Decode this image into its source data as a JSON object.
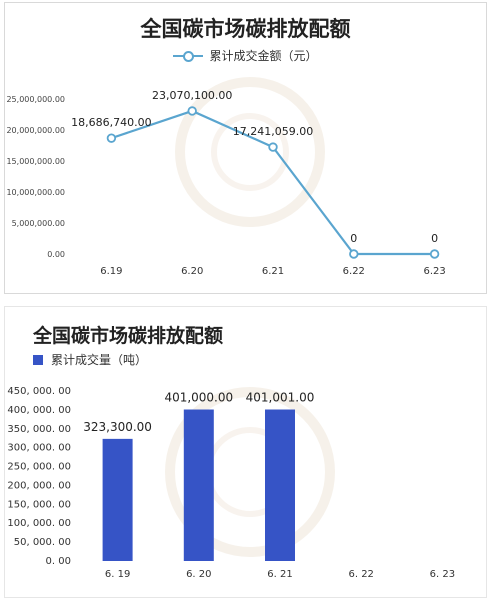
{
  "chart_data": [
    {
      "type": "line",
      "title": "全国碳市场碳排放配额",
      "categories": [
        "6.19",
        "6.20",
        "6.21",
        "6.22",
        "6.23"
      ],
      "series": [
        {
          "name": "累计成交金额（元）",
          "values": [
            18686740.0,
            23070100.0,
            17241059.0,
            0,
            0
          ]
        }
      ],
      "data_labels": [
        "18,686,740.00",
        "23,070,100.00",
        "17,241,059.00",
        "0",
        "0"
      ],
      "yticks": [
        "0.00",
        "5,000,000.00",
        "10,000,000.00",
        "15,000,000.00",
        "20,000,000.00",
        "25,000,000.00"
      ],
      "ylim": [
        0,
        25000000
      ],
      "grid": false,
      "legend": "top",
      "color": "#5aa5cf"
    },
    {
      "type": "bar",
      "title": "全国碳市场碳排放配额",
      "categories": [
        "6. 19",
        "6. 20",
        "6. 21",
        "6. 22",
        "6. 23"
      ],
      "series": [
        {
          "name": "累计成交量（吨）",
          "values": [
            323300.0,
            401000.0,
            401001.0,
            null,
            null
          ]
        }
      ],
      "data_labels": [
        "323,300.00",
        "401,000.00",
        "401,001.00",
        "",
        ""
      ],
      "yticks": [
        "0. 00",
        "50, 000. 00",
        "100, 000. 00",
        "150, 000. 00",
        "200, 000. 00",
        "250, 000. 00",
        "300, 000. 00",
        "350, 000. 00",
        "400, 000. 00",
        "450, 000. 00"
      ],
      "ylim": [
        0,
        450000
      ],
      "grid": false,
      "legend": "top-left",
      "color": "#3654c6"
    }
  ]
}
